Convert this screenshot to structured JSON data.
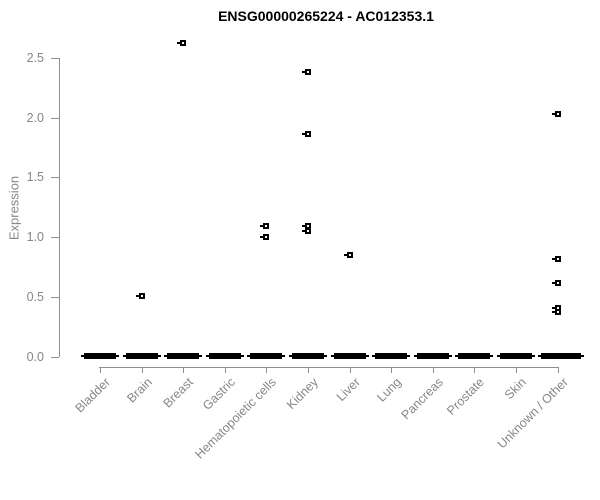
{
  "chart_data": {
    "type": "scatter",
    "title": "ENSG00000265224 - AC012353.1",
    "ylabel": "Expression",
    "xlabel": "",
    "ylim": [
      0,
      2.5
    ],
    "y_tick_labels": [
      "0.0",
      "0.5",
      "1.0",
      "1.5",
      "2.0",
      "2.5"
    ],
    "categories": [
      "Bladder",
      "Brain",
      "Breast",
      "Gastric",
      "Hematopoietic cells",
      "Kidney",
      "Liver",
      "Lung",
      "Pancreas",
      "Prostate",
      "Skin",
      "Unknown / Other"
    ],
    "grid": false,
    "legend": false,
    "marker": "open-square",
    "colors": {
      "points": "#000000",
      "axis": "#8f8f8f",
      "axis_text": "#878787",
      "title": "#000000",
      "background": "#ffffff"
    },
    "zero_clusters": {
      "description": "dense overlapping points at expression 0 drawn as a thick black bar",
      "value": 0,
      "categories": [
        "Bladder",
        "Brain",
        "Breast",
        "Gastric",
        "Hematopoietic cells",
        "Kidney",
        "Liver",
        "Lung",
        "Pancreas",
        "Prostate",
        "Skin",
        "Unknown / Other"
      ]
    },
    "outlier_points": [
      {
        "category": "Brain",
        "value": 0.51
      },
      {
        "category": "Breast",
        "value": 2.62
      },
      {
        "category": "Hematopoietic cells",
        "value": 1.09
      },
      {
        "category": "Hematopoietic cells",
        "value": 1.0
      },
      {
        "category": "Kidney",
        "value": 2.38
      },
      {
        "category": "Kidney",
        "value": 1.86
      },
      {
        "category": "Kidney",
        "value": 1.09
      },
      {
        "category": "Kidney",
        "value": 1.05
      },
      {
        "category": "Liver",
        "value": 0.85
      },
      {
        "category": "Unknown / Other",
        "value": 2.03
      },
      {
        "category": "Unknown / Other",
        "value": 0.82
      },
      {
        "category": "Unknown / Other",
        "value": 0.62
      },
      {
        "category": "Unknown / Other",
        "value": 0.41
      },
      {
        "category": "Unknown / Other",
        "value": 0.37
      }
    ]
  }
}
